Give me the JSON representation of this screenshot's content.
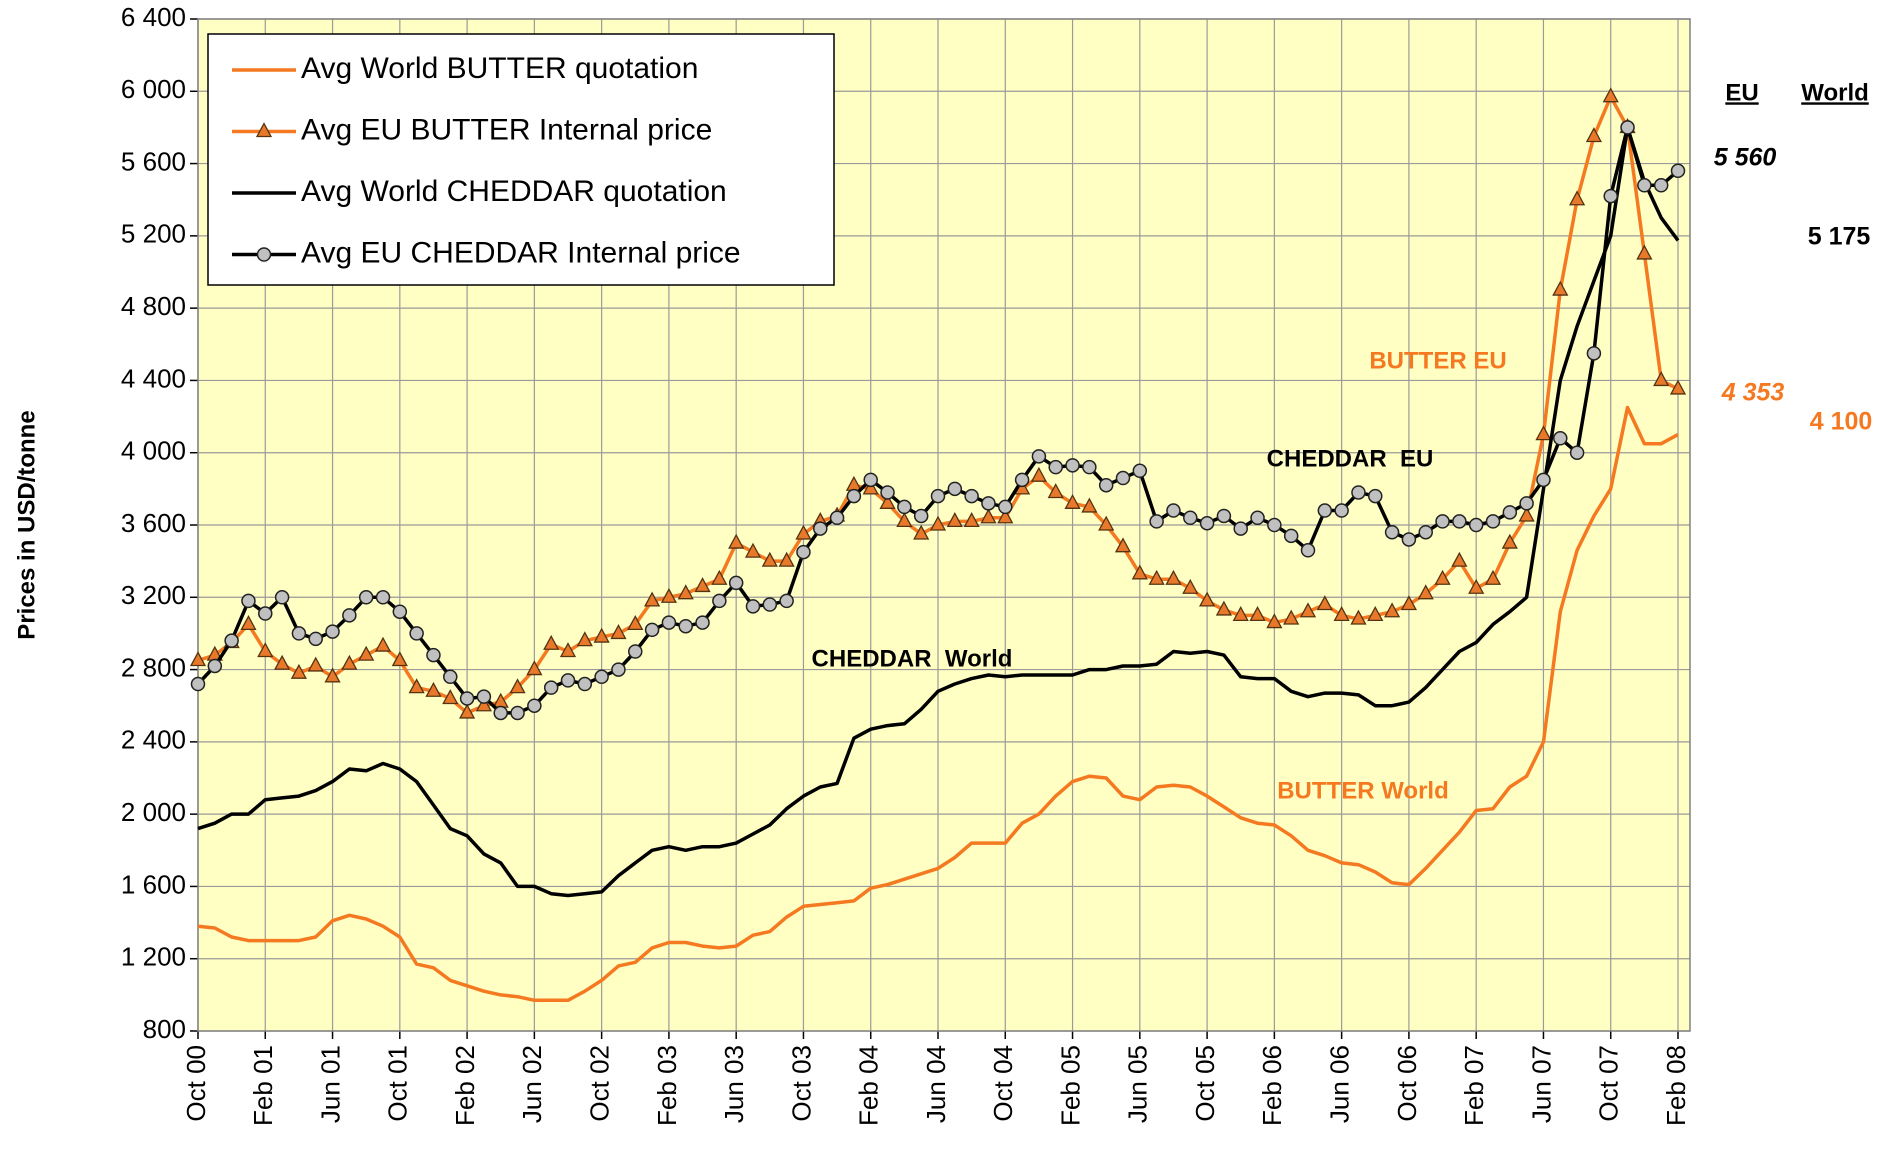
{
  "chart_data": {
    "type": "line",
    "y_label": "Prices in USD/tonne",
    "ylim": [
      800,
      6400
    ],
    "yticks": [
      {
        "value": 800,
        "label": "800"
      },
      {
        "value": 1200,
        "label": "1 200"
      },
      {
        "value": 1600,
        "label": "1 600"
      },
      {
        "value": 2000,
        "label": "2 000"
      },
      {
        "value": 2400,
        "label": "2 400"
      },
      {
        "value": 2800,
        "label": "2 800"
      },
      {
        "value": 3200,
        "label": "3 200"
      },
      {
        "value": 3600,
        "label": "3 600"
      },
      {
        "value": 4000,
        "label": "4 000"
      },
      {
        "value": 4400,
        "label": "4 400"
      },
      {
        "value": 4800,
        "label": "4 800"
      },
      {
        "value": 5200,
        "label": "5 200"
      },
      {
        "value": 5600,
        "label": "5 600"
      },
      {
        "value": 6000,
        "label": "6 000"
      },
      {
        "value": 6400,
        "label": "6 400"
      }
    ],
    "grid": true,
    "legend": "upper left",
    "categories": [
      "Oct 00",
      null,
      null,
      null,
      "Feb 01",
      null,
      null,
      null,
      "Jun 01",
      null,
      null,
      null,
      "Oct 01",
      null,
      null,
      null,
      "Feb 02",
      null,
      null,
      null,
      "Jun 02",
      null,
      null,
      null,
      "Oct 02",
      null,
      null,
      null,
      "Feb 03",
      null,
      null,
      null,
      "Jun 03",
      null,
      null,
      null,
      "Oct 03",
      null,
      null,
      null,
      "Feb 04",
      null,
      null,
      null,
      "Jun 04",
      null,
      null,
      null,
      "Oct 04",
      null,
      null,
      null,
      "Feb 05",
      null,
      null,
      null,
      "Jun 05",
      null,
      null,
      null,
      "Oct 05",
      null,
      null,
      null,
      "Feb 06",
      null,
      null,
      null,
      "Jun 06",
      null,
      null,
      null,
      "Oct 06",
      null,
      null,
      null,
      "Feb 07",
      null,
      null,
      null,
      "Jun 07",
      null,
      null,
      null,
      "Oct 07",
      null,
      null,
      null,
      "Feb 08"
    ],
    "series": [
      {
        "name": "Avg World BUTTER quotation",
        "color": "#f47920",
        "marker": "none",
        "values": [
          1380,
          1370,
          1320,
          1300,
          1300,
          1300,
          1300,
          1320,
          1410,
          1440,
          1420,
          1380,
          1320,
          1170,
          1150,
          1080,
          1050,
          1020,
          1000,
          990,
          970,
          970,
          970,
          1020,
          1080,
          1160,
          1180,
          1260,
          1290,
          1290,
          1270,
          1260,
          1270,
          1330,
          1350,
          1430,
          1490,
          1500,
          1510,
          1520,
          1590,
          1610,
          1640,
          1670,
          1700,
          1760,
          1840,
          1840,
          1840,
          1950,
          2000,
          2100,
          2180,
          2210,
          2200,
          2100,
          2080,
          2150,
          2160,
          2150,
          2100,
          2040,
          1980,
          1950,
          1940,
          1880,
          1800,
          1770,
          1730,
          1720,
          1680,
          1620,
          1610,
          1700,
          1800,
          1900,
          2020,
          2030,
          2150,
          2210,
          2400,
          3120,
          3460,
          3650,
          3800,
          4250,
          4050,
          4050,
          4100
        ]
      },
      {
        "name": "Avg EU BUTTER Internal price",
        "color": "#f47920",
        "marker": "triangle",
        "marker_fill": "#e8792a",
        "values": [
          2850,
          2880,
          2950,
          3050,
          2900,
          2830,
          2780,
          2820,
          2760,
          2830,
          2880,
          2930,
          2850,
          2700,
          2680,
          2640,
          2560,
          2600,
          2620,
          2700,
          2800,
          2940,
          2900,
          2960,
          2980,
          3000,
          3050,
          3180,
          3200,
          3220,
          3260,
          3300,
          3500,
          3450,
          3400,
          3400,
          3550,
          3620,
          3650,
          3820,
          3800,
          3720,
          3620,
          3550,
          3600,
          3620,
          3620,
          3640,
          3640,
          3800,
          3870,
          3780,
          3720,
          3700,
          3600,
          3480,
          3330,
          3300,
          3300,
          3250,
          3180,
          3130,
          3100,
          3100,
          3060,
          3080,
          3120,
          3160,
          3100,
          3080,
          3100,
          3120,
          3160,
          3220,
          3300,
          3400,
          3250,
          3300,
          3500,
          3650,
          4100,
          4900,
          5400,
          5750,
          5970,
          5800,
          5100,
          4400,
          4353
        ]
      },
      {
        "name": "Avg World CHEDDAR quotation",
        "color": "#000000",
        "marker": "none",
        "values": [
          1920,
          1950,
          2000,
          2000,
          2080,
          2090,
          2100,
          2130,
          2180,
          2250,
          2240,
          2280,
          2250,
          2180,
          2050,
          1920,
          1880,
          1780,
          1730,
          1600,
          1600,
          1560,
          1550,
          1560,
          1570,
          1660,
          1730,
          1800,
          1820,
          1800,
          1820,
          1820,
          1840,
          1890,
          1940,
          2030,
          2100,
          2150,
          2170,
          2420,
          2470,
          2490,
          2500,
          2580,
          2680,
          2720,
          2750,
          2770,
          2760,
          2770,
          2770,
          2770,
          2770,
          2800,
          2800,
          2820,
          2820,
          2830,
          2900,
          2890,
          2900,
          2880,
          2760,
          2750,
          2750,
          2680,
          2650,
          2670,
          2670,
          2660,
          2600,
          2600,
          2620,
          2700,
          2800,
          2900,
          2950,
          3050,
          3120,
          3200,
          3800,
          4400,
          4700,
          4950,
          5200,
          5800,
          5500,
          5300,
          5175
        ]
      },
      {
        "name": "Avg EU CHEDDAR Internal price",
        "color": "#000000",
        "marker": "circle",
        "marker_fill": "#c0c0c0",
        "values": [
          2720,
          2820,
          2960,
          3180,
          3110,
          3200,
          3000,
          2970,
          3010,
          3100,
          3200,
          3200,
          3120,
          3000,
          2880,
          2760,
          2640,
          2650,
          2560,
          2560,
          2600,
          2700,
          2740,
          2720,
          2760,
          2800,
          2900,
          3020,
          3060,
          3040,
          3060,
          3180,
          3280,
          3150,
          3160,
          3180,
          3450,
          3580,
          3640,
          3760,
          3850,
          3780,
          3700,
          3650,
          3760,
          3800,
          3760,
          3720,
          3700,
          3850,
          3980,
          3920,
          3930,
          3920,
          3820,
          3860,
          3900,
          3620,
          3680,
          3640,
          3610,
          3650,
          3580,
          3640,
          3600,
          3540,
          3460,
          3680,
          3680,
          3780,
          3760,
          3560,
          3520,
          3560,
          3620,
          3620,
          3600,
          3620,
          3670,
          3720,
          3850,
          4080,
          4000,
          4550,
          5420,
          5800,
          5480,
          5480,
          5560
        ]
      }
    ],
    "annotations": [
      {
        "text": "BUTTER EU",
        "color": "#f47920"
      },
      {
        "text": "CHEDDAR  EU",
        "color": "#000000"
      },
      {
        "text": "CHEDDAR  World",
        "color": "#000000"
      },
      {
        "text": "BUTTER World",
        "color": "#f47920"
      },
      {
        "text": "EU",
        "color": "#000000"
      },
      {
        "text": "World",
        "color": "#000000"
      },
      {
        "text": "5 560",
        "color": "#000000"
      },
      {
        "text": "5 175",
        "color": "#000000"
      },
      {
        "text": "4 353",
        "color": "#f47920"
      },
      {
        "text": "4 100",
        "color": "#f47920"
      }
    ]
  }
}
